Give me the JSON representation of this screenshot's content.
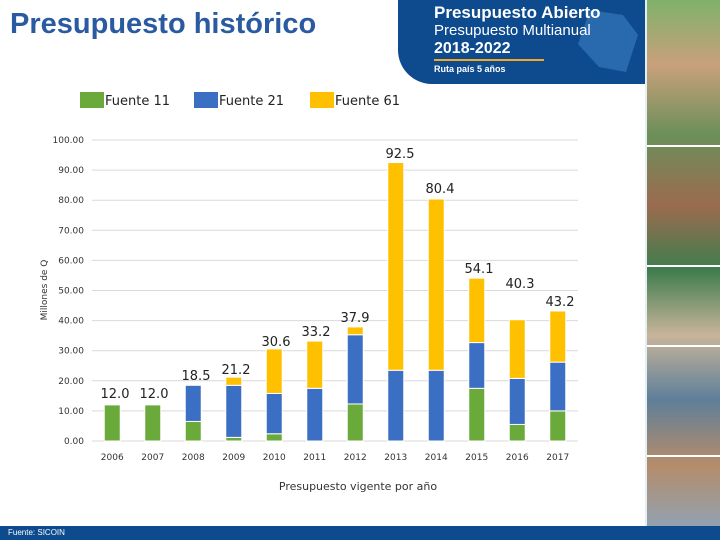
{
  "page": {
    "title": "Presupuesto histórico",
    "source": "Fuente: SICOIN"
  },
  "banner": {
    "line1": "Presupuesto Abierto",
    "line2": "Presupuesto Multianual",
    "line3": "2018-2022",
    "line4": "Ruta país 5 años"
  },
  "colors": {
    "fuente11": "#6aaa3a",
    "fuente21": "#3b6fc4",
    "fuente61": "#ffc000",
    "title": "#2a5aa0",
    "banner": "#0d4a8e"
  },
  "chart_data": {
    "type": "bar",
    "stacked": true,
    "ylabel": "Millones de Q",
    "xlabel": "Presupuesto vigente por año",
    "ylim": [
      0,
      100
    ],
    "yticks": [
      "0.00",
      "10.00",
      "20.00",
      "30.00",
      "40.00",
      "50.00",
      "60.00",
      "70.00",
      "80.00",
      "90.00",
      "100.00"
    ],
    "grid": true,
    "legend_position": "top",
    "categories": [
      "2006",
      "2007",
      "2008",
      "2009",
      "2010",
      "2011",
      "2012",
      "2013",
      "2014",
      "2015",
      "2016",
      "2017"
    ],
    "series": [
      {
        "name": "Fuente 11",
        "color": "#6aaa3a",
        "values": [
          12.0,
          12.0,
          6.5,
          1.2,
          2.4,
          0.0,
          12.3,
          0.0,
          0.0,
          17.5,
          5.5,
          10.0
        ]
      },
      {
        "name": "Fuente 21",
        "color": "#3b6fc4",
        "values": [
          0.0,
          0.0,
          12.0,
          17.3,
          13.4,
          17.5,
          23.0,
          23.5,
          23.5,
          15.2,
          15.3,
          16.2
        ]
      },
      {
        "name": "Fuente 61",
        "color": "#ffc000",
        "values": [
          0.0,
          0.0,
          0.0,
          2.7,
          14.8,
          15.7,
          2.6,
          69.0,
          56.9,
          21.4,
          19.5,
          17.0
        ]
      }
    ],
    "totals": [
      12.0,
      12.0,
      18.5,
      21.2,
      30.6,
      33.2,
      37.9,
      92.5,
      80.4,
      54.1,
      40.3,
      43.2
    ],
    "total_labels": [
      "12.0",
      "12.0",
      "18.5",
      "21.2",
      "30.6",
      "33.2",
      "37.9",
      "92.5",
      "80.4",
      "54.1",
      "40.3",
      "43.2"
    ]
  }
}
